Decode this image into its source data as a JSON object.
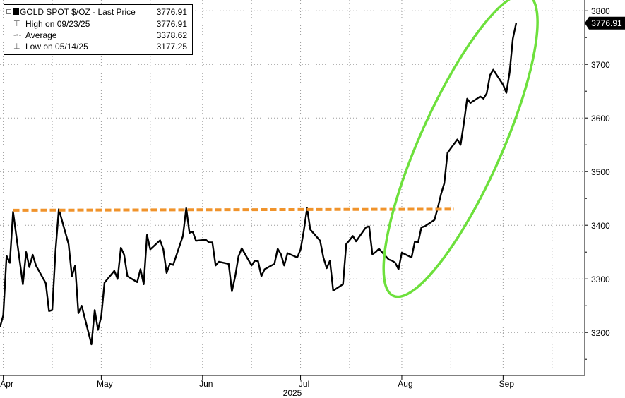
{
  "legend": {
    "main": {
      "label": "GOLD SPOT $/OZ - Last Price",
      "value": "3776.91"
    },
    "rows": [
      {
        "icon": "high-marker-icon",
        "label": "High on 09/23/25",
        "value": "3776.91"
      },
      {
        "icon": "average-marker-icon",
        "label": "Average",
        "value": "3378.62"
      },
      {
        "icon": "low-marker-icon",
        "label": "Low on 05/14/25",
        "value": "3177.25"
      }
    ]
  },
  "chart_data": {
    "type": "line",
    "title": "",
    "xlabel": "2025",
    "ylabel": "",
    "ylim": [
      3120,
      3820
    ],
    "y_ticks": [
      3200,
      3300,
      3400,
      3500,
      3600,
      3700,
      3800
    ],
    "y_tick_labels": [
      "3200",
      "3300",
      "3400",
      "3500",
      "3600",
      "3700",
      "3800"
    ],
    "x_range": [
      "2025-03-31",
      "2025-09-26"
    ],
    "x_month_ticks": [
      {
        "date": "2025-04-01",
        "label": "Apr"
      },
      {
        "date": "2025-05-01",
        "label": "May"
      },
      {
        "date": "2025-06-01",
        "label": "Jun"
      },
      {
        "date": "2025-07-01",
        "label": "Jul"
      },
      {
        "date": "2025-08-01",
        "label": "Aug"
      },
      {
        "date": "2025-09-01",
        "label": "Sep"
      }
    ],
    "last_price_label": "3776.91",
    "grid": true,
    "series": [
      {
        "name": "GOLD SPOT $/OZ",
        "color": "#000000",
        "points": [
          [
            "2025-03-31",
            3210
          ],
          [
            "2025-04-01",
            3232
          ],
          [
            "2025-04-02",
            3343
          ],
          [
            "2025-04-03",
            3330
          ],
          [
            "2025-04-04",
            3425
          ],
          [
            "2025-04-07",
            3290
          ],
          [
            "2025-04-08",
            3350
          ],
          [
            "2025-04-09",
            3322
          ],
          [
            "2025-04-10",
            3345
          ],
          [
            "2025-04-11",
            3325
          ],
          [
            "2025-04-14",
            3292
          ],
          [
            "2025-04-15",
            3240
          ],
          [
            "2025-04-16",
            3242
          ],
          [
            "2025-04-17",
            3352
          ],
          [
            "2025-04-18",
            3430
          ],
          [
            "2025-04-21",
            3365
          ],
          [
            "2025-04-22",
            3305
          ],
          [
            "2025-04-23",
            3325
          ],
          [
            "2025-04-24",
            3236
          ],
          [
            "2025-04-25",
            3250
          ],
          [
            "2025-04-28",
            3178
          ],
          [
            "2025-04-29",
            3242
          ],
          [
            "2025-04-30",
            3205
          ],
          [
            "2025-05-01",
            3230
          ],
          [
            "2025-05-02",
            3293
          ],
          [
            "2025-05-05",
            3315
          ],
          [
            "2025-05-06",
            3300
          ],
          [
            "2025-05-07",
            3358
          ],
          [
            "2025-05-08",
            3345
          ],
          [
            "2025-05-09",
            3305
          ],
          [
            "2025-05-12",
            3294
          ],
          [
            "2025-05-13",
            3318
          ],
          [
            "2025-05-14",
            3290
          ],
          [
            "2025-05-15",
            3382
          ],
          [
            "2025-05-16",
            3355
          ],
          [
            "2025-05-19",
            3372
          ],
          [
            "2025-05-20",
            3355
          ],
          [
            "2025-05-21",
            3311
          ],
          [
            "2025-05-22",
            3328
          ],
          [
            "2025-05-23",
            3326
          ],
          [
            "2025-05-26",
            3380
          ],
          [
            "2025-05-27",
            3432
          ],
          [
            "2025-05-28",
            3386
          ],
          [
            "2025-05-29",
            3388
          ],
          [
            "2025-05-30",
            3371
          ],
          [
            "2025-06-02",
            3373
          ],
          [
            "2025-06-03",
            3368
          ],
          [
            "2025-06-04",
            3368
          ],
          [
            "2025-06-05",
            3325
          ],
          [
            "2025-06-06",
            3332
          ],
          [
            "2025-06-09",
            3328
          ],
          [
            "2025-06-10",
            3277
          ],
          [
            "2025-06-11",
            3305
          ],
          [
            "2025-06-12",
            3342
          ],
          [
            "2025-06-13",
            3357
          ],
          [
            "2025-06-16",
            3325
          ],
          [
            "2025-06-17",
            3334
          ],
          [
            "2025-06-18",
            3333
          ],
          [
            "2025-06-19",
            3305
          ],
          [
            "2025-06-20",
            3318
          ],
          [
            "2025-06-23",
            3328
          ],
          [
            "2025-06-24",
            3356
          ],
          [
            "2025-06-25",
            3346
          ],
          [
            "2025-06-26",
            3325
          ],
          [
            "2025-06-27",
            3348
          ],
          [
            "2025-06-30",
            3340
          ],
          [
            "2025-07-01",
            3355
          ],
          [
            "2025-07-02",
            3390
          ],
          [
            "2025-07-03",
            3432
          ],
          [
            "2025-07-04",
            3392
          ],
          [
            "2025-07-07",
            3371
          ],
          [
            "2025-07-08",
            3340
          ],
          [
            "2025-07-09",
            3320
          ],
          [
            "2025-07-10",
            3334
          ],
          [
            "2025-07-11",
            3278
          ],
          [
            "2025-07-14",
            3290
          ],
          [
            "2025-07-15",
            3365
          ],
          [
            "2025-07-16",
            3372
          ],
          [
            "2025-07-17",
            3380
          ],
          [
            "2025-07-18",
            3370
          ],
          [
            "2025-07-21",
            3396
          ],
          [
            "2025-07-22",
            3398
          ],
          [
            "2025-07-23",
            3346
          ],
          [
            "2025-07-24",
            3350
          ],
          [
            "2025-07-25",
            3356
          ],
          [
            "2025-07-28",
            3336
          ],
          [
            "2025-07-29",
            3334
          ],
          [
            "2025-07-30",
            3330
          ],
          [
            "2025-07-31",
            3318
          ],
          [
            "2025-08-01",
            3349
          ],
          [
            "2025-08-04",
            3340
          ],
          [
            "2025-08-05",
            3370
          ],
          [
            "2025-08-06",
            3368
          ],
          [
            "2025-08-07",
            3396
          ],
          [
            "2025-08-08",
            3398
          ],
          [
            "2025-08-11",
            3410
          ],
          [
            "2025-08-12",
            3432
          ],
          [
            "2025-08-13",
            3458
          ],
          [
            "2025-08-14",
            3478
          ],
          [
            "2025-08-15",
            3535
          ],
          [
            "2025-08-18",
            3560
          ],
          [
            "2025-08-19",
            3550
          ],
          [
            "2025-08-20",
            3590
          ],
          [
            "2025-08-21",
            3636
          ],
          [
            "2025-08-22",
            3628
          ],
          [
            "2025-08-25",
            3640
          ],
          [
            "2025-08-26",
            3636
          ],
          [
            "2025-08-27",
            3646
          ],
          [
            "2025-08-28",
            3680
          ],
          [
            "2025-08-29",
            3690
          ],
          [
            "2025-09-01",
            3662
          ],
          [
            "2025-09-02",
            3647
          ],
          [
            "2025-09-03",
            3685
          ],
          [
            "2025-09-04",
            3748
          ],
          [
            "2025-09-05",
            3776.91
          ]
        ]
      },
      {
        "name": "",
        "style": "dashed",
        "color": "#f0932b",
        "points": [
          [
            "2025-04-04",
            3428
          ],
          [
            "2025-08-17",
            3430
          ]
        ]
      }
    ],
    "annotations": [
      {
        "type": "ellipse",
        "color": "#6de03c"
      }
    ]
  }
}
